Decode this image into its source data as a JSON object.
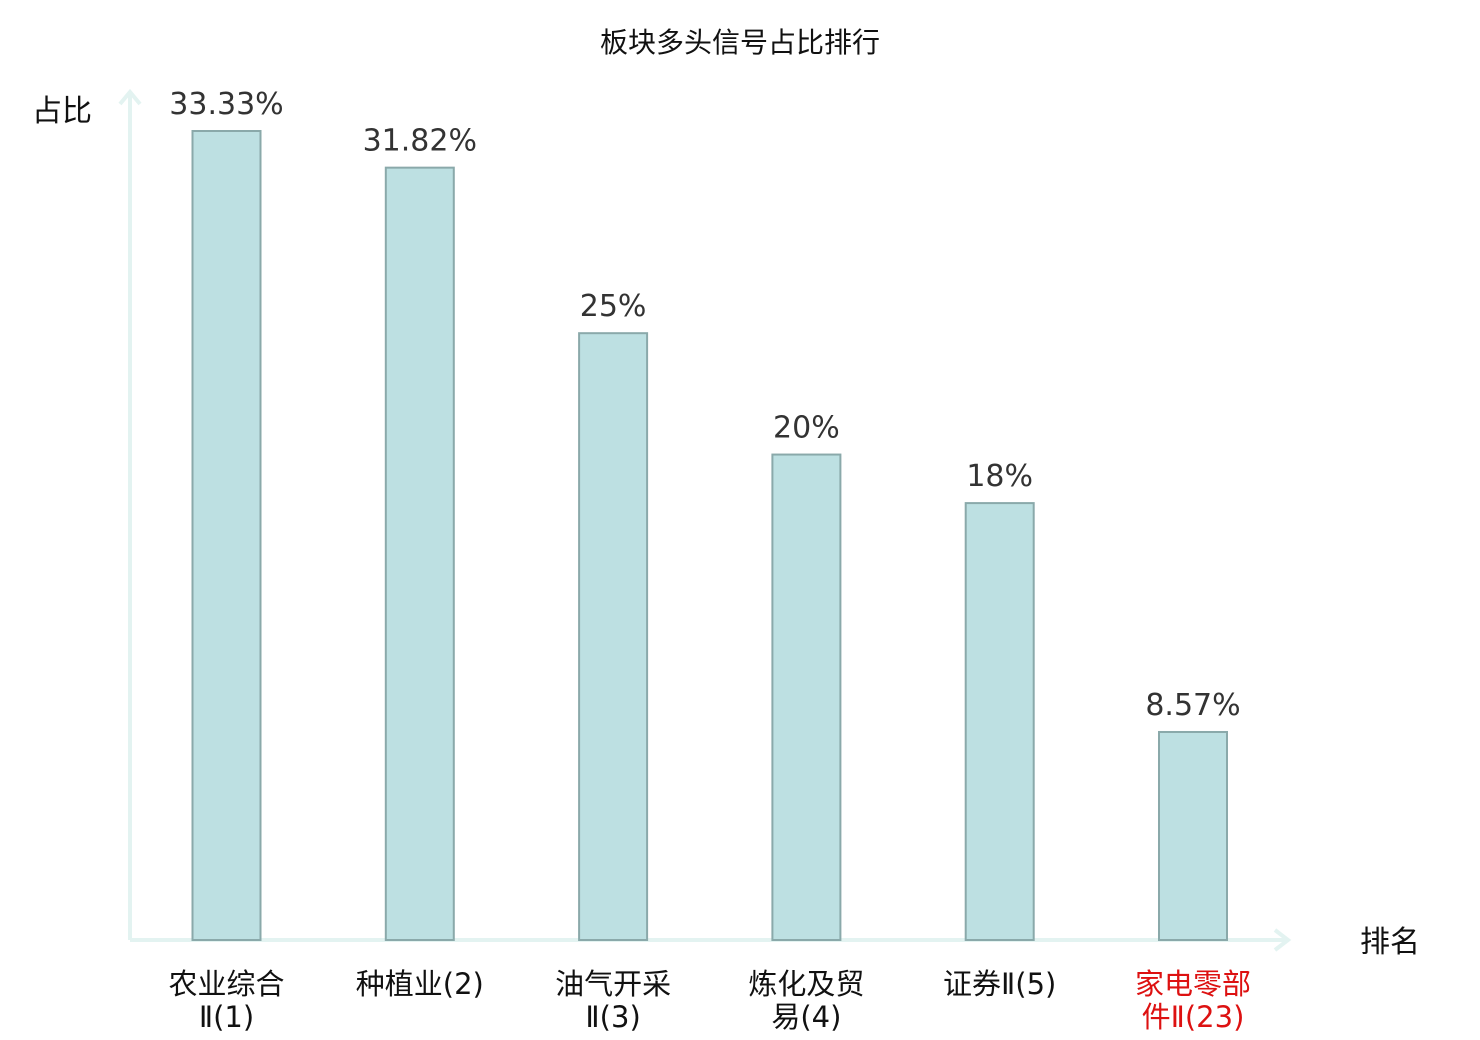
{
  "chart_data": {
    "type": "bar",
    "title": "板块多头信号占比排行",
    "ylabel": "占比",
    "xlabel": "排名",
    "ylim": [
      0,
      35
    ],
    "grid": false,
    "categories": [
      {
        "lines": [
          "农业综合",
          "Ⅱ(1)"
        ],
        "highlight": false
      },
      {
        "lines": [
          "种植业(2)"
        ],
        "highlight": false
      },
      {
        "lines": [
          "油气开采",
          "Ⅱ(3)"
        ],
        "highlight": false
      },
      {
        "lines": [
          "炼化及贸",
          "易(4)"
        ],
        "highlight": false
      },
      {
        "lines": [
          "证券Ⅱ(5)"
        ],
        "highlight": false
      },
      {
        "lines": [
          "家电零部",
          "件Ⅱ(23)"
        ],
        "highlight": true
      }
    ],
    "values": [
      33.33,
      31.82,
      25,
      20,
      18,
      8.57
    ],
    "value_labels": [
      "33.33%",
      "31.82%",
      "25%",
      "20%",
      "18%",
      "8.57%"
    ],
    "colors": {
      "bar_fill": "#bde0e2",
      "bar_stroke": "#8aa9aa",
      "axis": "#e3f3f1",
      "label_normal": "#111111",
      "label_highlight": "#dd1111"
    }
  }
}
